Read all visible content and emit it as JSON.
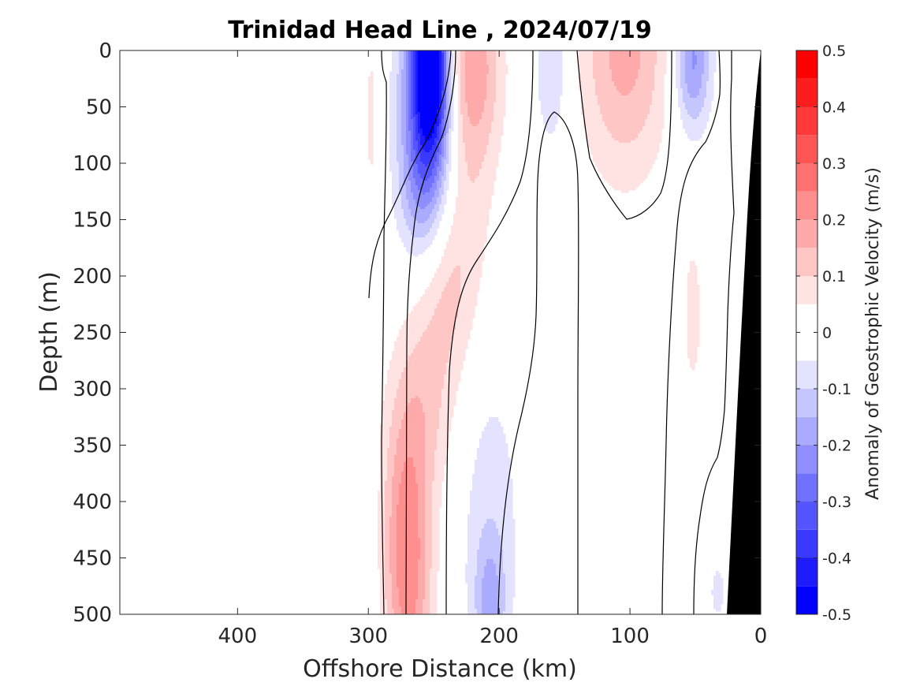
{
  "chart_data": {
    "type": "heatmap",
    "title": "Trinidad Head Line , 2024/07/19",
    "xlabel": "Offshore Distance (km)",
    "ylabel": "Depth (m)",
    "xlim": [
      490,
      0
    ],
    "ylim": [
      0,
      500
    ],
    "x_reversed": true,
    "y_reversed": true,
    "x_ticks": [
      400,
      300,
      200,
      100,
      0
    ],
    "x_tick_labels": [
      "400",
      "300",
      "200",
      "100",
      "0"
    ],
    "y_ticks": [
      0,
      50,
      100,
      150,
      200,
      250,
      300,
      350,
      400,
      450,
      500
    ],
    "y_tick_labels": [
      "0",
      "50",
      "100",
      "150",
      "200",
      "250",
      "300",
      "350",
      "400",
      "450",
      "500"
    ],
    "colorbar": {
      "label": "Anomaly of Geostrophic Velocity (m/s)",
      "range": [
        -0.5,
        0.5
      ],
      "ticks": [
        0.5,
        0.4,
        0.3,
        0.2,
        0.1,
        0,
        -0.1,
        -0.2,
        -0.3,
        -0.4,
        -0.5
      ],
      "tick_labels": [
        "0.5",
        "0.4",
        "0.3",
        "0.2",
        "0.1",
        "0",
        "-0.1",
        "-0.2",
        "-0.3",
        "-0.4",
        "-0.5"
      ],
      "levels": [
        -0.5,
        -0.45,
        -0.4,
        -0.35,
        -0.3,
        -0.25,
        -0.2,
        -0.15,
        -0.1,
        -0.05,
        0.05,
        0.1,
        0.15,
        0.2,
        0.25,
        0.3,
        0.35,
        0.4,
        0.45,
        0.5
      ],
      "colors": {
        "neg": [
          "#0000ff",
          "#1c1cff",
          "#3939ff",
          "#5555ff",
          "#7171ff",
          "#8e8eff",
          "#aaaaff",
          "#c6c6ff",
          "#e3e3ff"
        ],
        "zero": "#ffffff",
        "pos": [
          "#ffe3e3",
          "#ffc6c6",
          "#ffaaaa",
          "#ff8e8e",
          "#ff7171",
          "#ff5555",
          "#ff3939",
          "#ff1c1c",
          "#ff0000"
        ]
      }
    },
    "features": [
      {
        "name": "negative core",
        "x_range": [
          275,
          225
        ],
        "depth_range": [
          0,
          165
        ],
        "min_value": -0.45
      },
      {
        "name": "positive band",
        "x_range": [
          240,
          150
        ],
        "depth_range": [
          0,
          500
        ],
        "max_value": 0.2
      },
      {
        "name": "negative patch",
        "x_range": [
          185,
          140
        ],
        "depth_range": [
          0,
          65
        ],
        "min_value": -0.1
      },
      {
        "name": "positive lobe",
        "x_range": [
          140,
          70
        ],
        "depth_range": [
          0,
          95
        ],
        "max_value": 0.2
      },
      {
        "name": "negative patch",
        "x_range": [
          70,
          35
        ],
        "depth_range": [
          0,
          65
        ],
        "min_value": -0.2
      },
      {
        "name": "positive thread",
        "x_range": [
          60,
          45
        ],
        "depth_range": [
          195,
          275
        ],
        "max_value": 0.1
      },
      {
        "name": "deep negative",
        "x_range": [
          235,
          190
        ],
        "depth_range": [
          300,
          500
        ],
        "min_value": -0.15
      },
      {
        "name": "deep positive",
        "x_range": [
          290,
          255
        ],
        "depth_range": [
          260,
          500
        ],
        "max_value": 0.2
      }
    ],
    "bathymetry_mask": "black",
    "grid": false,
    "legend": "none"
  }
}
